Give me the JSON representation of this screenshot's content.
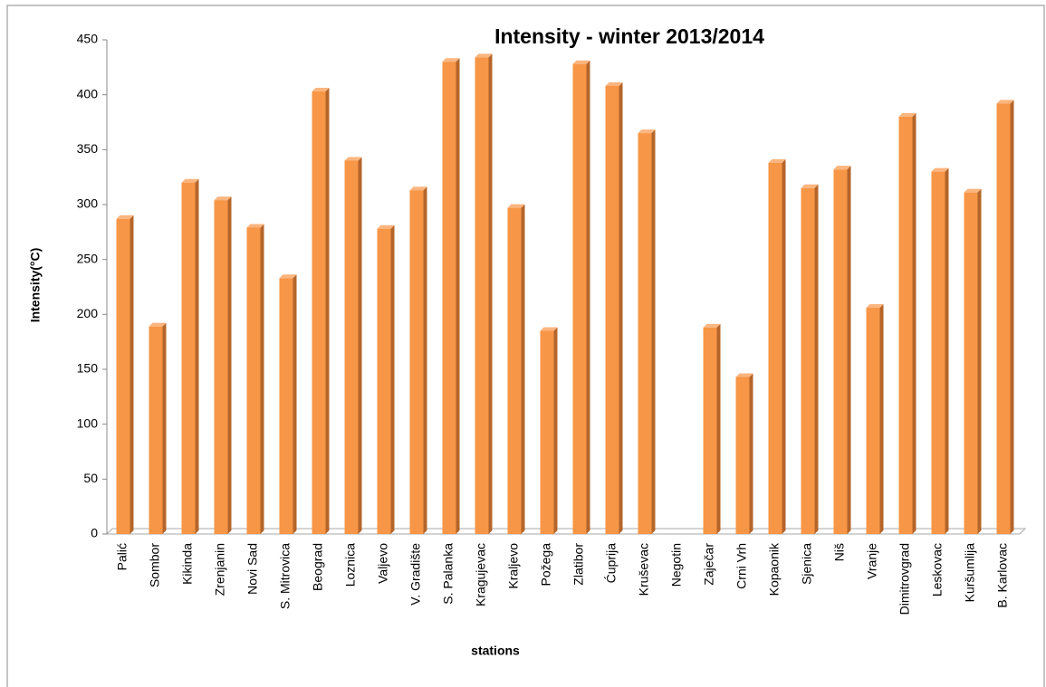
{
  "chart_data": {
    "type": "bar",
    "title": "Intensity - winter 2013/2014",
    "x_label": "stations",
    "y_label": "Intensity(°C)",
    "categories": [
      "Palić",
      "Sombor",
      "Kikinda",
      "Zrenjanin",
      "Novi Sad",
      "S. Mitrovica",
      "Beograd",
      "Loznica",
      "Valjevo",
      "V. Gradište",
      "S. Palanka",
      "Kragujevac",
      "Kraljevo",
      "Požega",
      "Zlatibor",
      "Ćuprija",
      "Kruševac",
      "Negotin",
      "Zaječar",
      "Crni Vrh",
      "Kopaonik",
      "Sjenica",
      "Niš",
      "Vranje",
      "Dimitrovgrad",
      "Leskovac",
      "Kuršumlija",
      "B. Karlovac"
    ],
    "values": [
      287,
      189,
      320,
      304,
      279,
      233,
      403,
      340,
      278,
      313,
      430,
      434,
      297,
      185,
      428,
      408,
      365,
      null,
      188,
      143,
      338,
      315,
      332,
      206,
      380,
      330,
      311,
      392
    ],
    "color": "#f79646",
    "ylim": [
      0,
      450
    ],
    "yticks": [
      0,
      50,
      100,
      150,
      200,
      250,
      300,
      350,
      400,
      450
    ],
    "grid": false
  }
}
